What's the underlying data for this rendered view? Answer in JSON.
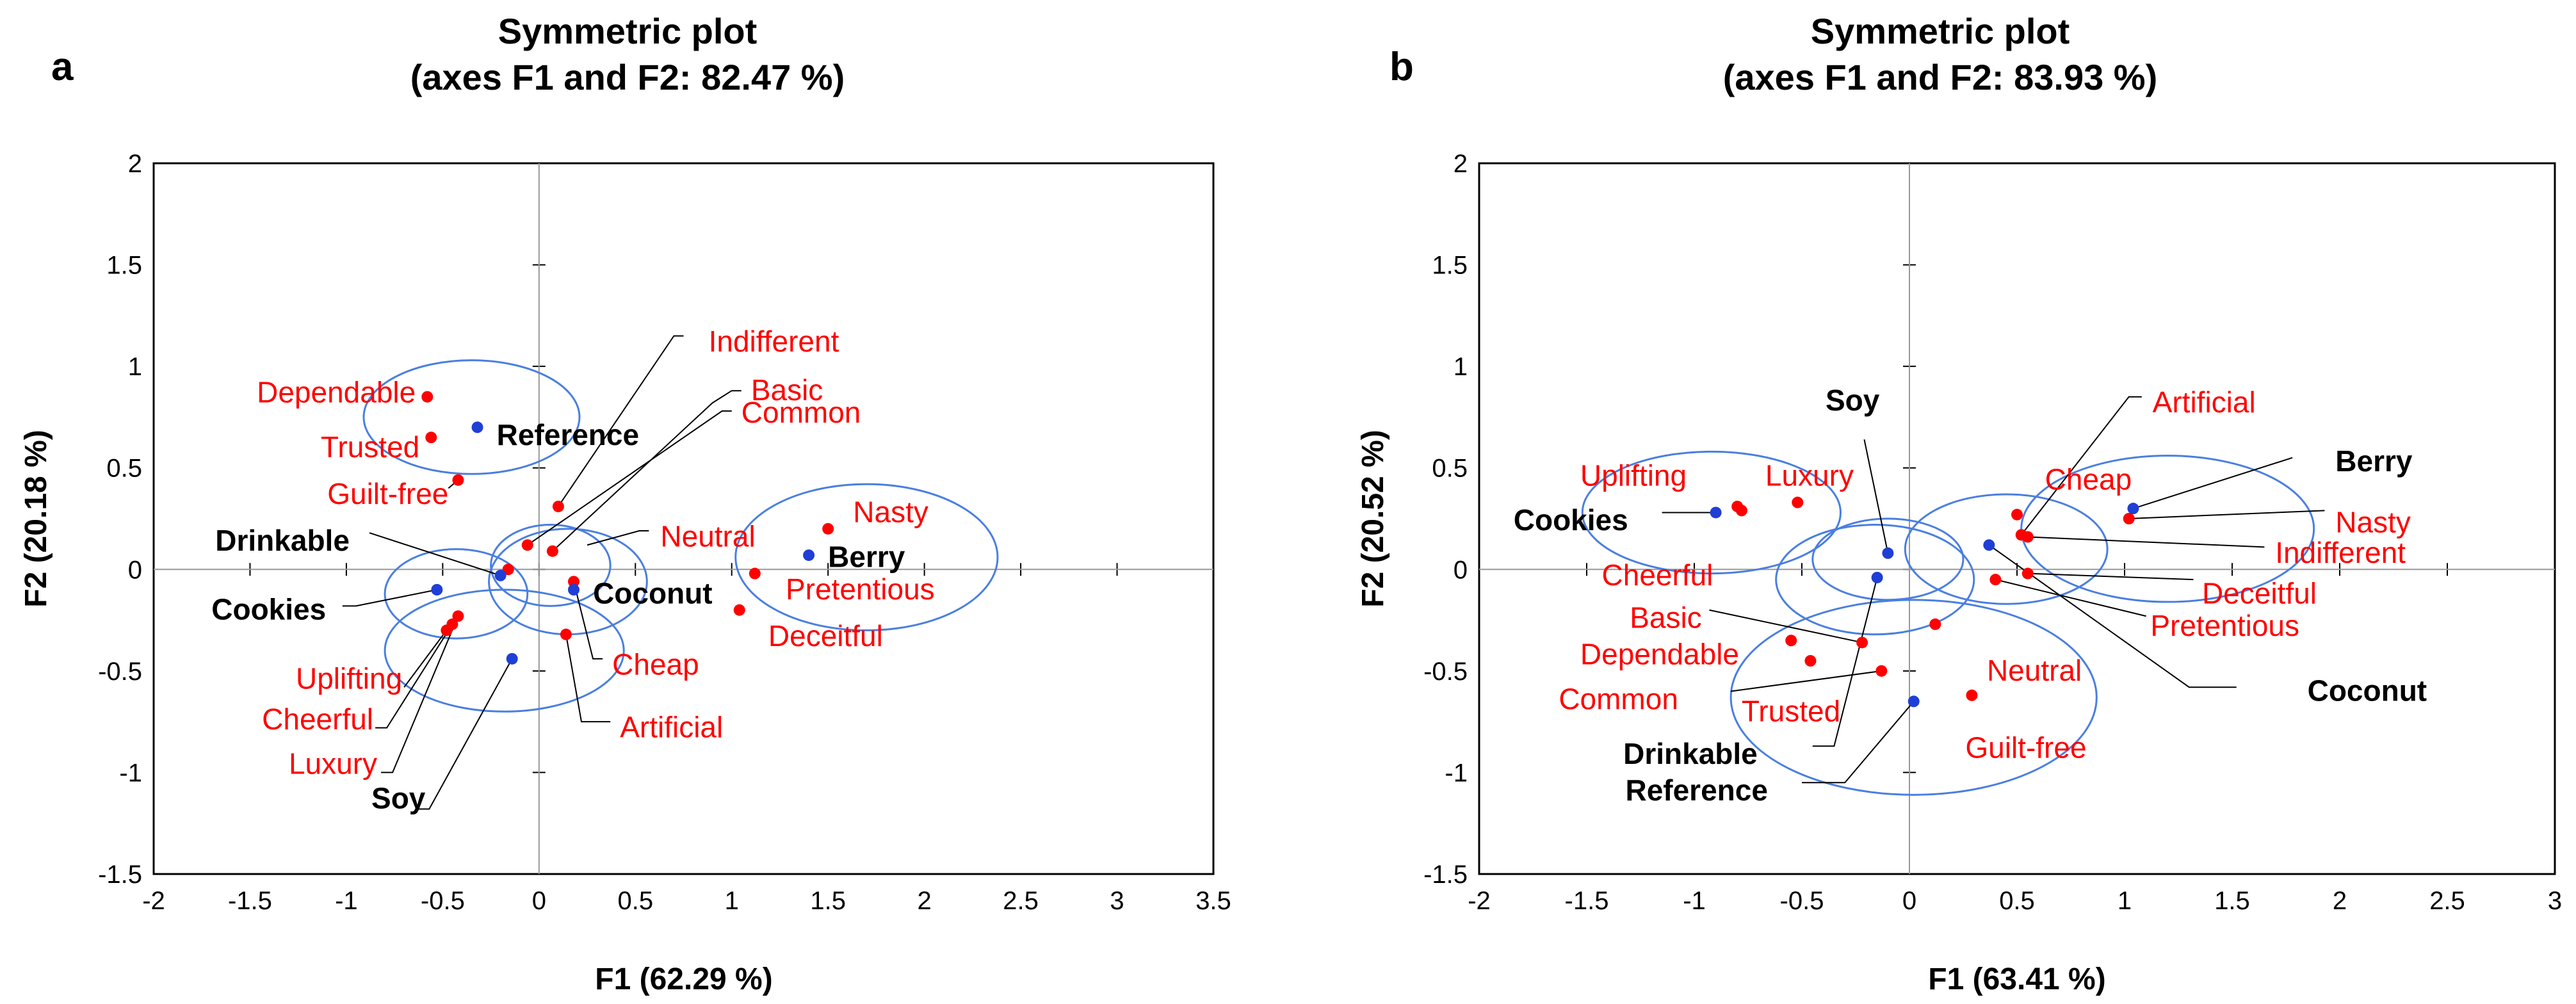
{
  "colors": {
    "attribute": "#ff0000",
    "sample": "#1f3fd6",
    "ellipse": "#4a7fe0",
    "frame": "#000000",
    "zero_line": "#999999"
  },
  "chart_data": [
    {
      "type": "scatter",
      "panel": "a",
      "title": "Symmetric plot",
      "subtitle": "(axes F1 and F2: 82.47 %)",
      "xlabel": "F1 (62.29 %)",
      "ylabel": "F2 (20.18 %)",
      "xlim": [
        -2,
        3.5
      ],
      "ylim": [
        -1.5,
        2
      ],
      "xticks": [
        "-2",
        "-1.5",
        "-1",
        "-0.5",
        "0",
        "0.5",
        "1",
        "1.5",
        "2",
        "2.5",
        "3",
        "3.5"
      ],
      "yticks": [
        "-1.5",
        "-1",
        "-0.5",
        "0",
        "0.5",
        "1",
        "1.5",
        "2"
      ],
      "attributes": [
        {
          "name": "Dependable",
          "x": -0.58,
          "y": 0.85
        },
        {
          "name": "Trusted",
          "x": -0.56,
          "y": 0.65
        },
        {
          "name": "Guilt-free",
          "x": -0.42,
          "y": 0.44
        },
        {
          "name": "Indifferent",
          "x": 0.1,
          "y": 0.31
        },
        {
          "name": "Basic",
          "x": -0.06,
          "y": 0.12
        },
        {
          "name": "Common",
          "x": 0.07,
          "y": 0.09
        },
        {
          "name": "Neutral",
          "x": -0.16,
          "y": 0.0
        },
        {
          "name": "Nasty",
          "x": 1.5,
          "y": 0.2
        },
        {
          "name": "Pretentious",
          "x": 1.12,
          "y": -0.02
        },
        {
          "name": "Deceitful",
          "x": 1.04,
          "y": -0.2
        },
        {
          "name": "Cheap",
          "x": 0.18,
          "y": -0.06
        },
        {
          "name": "Artificial",
          "x": 0.14,
          "y": -0.32
        },
        {
          "name": "Uplifting",
          "x": -0.48,
          "y": -0.3
        },
        {
          "name": "Cheerful",
          "x": -0.45,
          "y": -0.27
        },
        {
          "name": "Luxury",
          "x": -0.42,
          "y": -0.23
        }
      ],
      "samples": [
        {
          "name": "Reference",
          "x": -0.32,
          "y": 0.7
        },
        {
          "name": "Drinkable",
          "x": -0.2,
          "y": -0.03
        },
        {
          "name": "Cookies",
          "x": -0.53,
          "y": -0.1
        },
        {
          "name": "Coconut",
          "x": 0.18,
          "y": -0.1
        },
        {
          "name": "Berry",
          "x": 1.4,
          "y": 0.07
        },
        {
          "name": "Soy",
          "x": -0.14,
          "y": -0.44
        }
      ]
    },
    {
      "type": "scatter",
      "panel": "b",
      "title": "Symmetric plot",
      "subtitle": "(axes F1 and F2: 83.93 %)",
      "xlabel": "F1 (63.41 %)",
      "ylabel": "F2 (20.52 %)",
      "xlim": [
        -2,
        3
      ],
      "ylim": [
        -1.5,
        2
      ],
      "xticks": [
        "-2",
        "-1.5",
        "-1",
        "-0.5",
        "0",
        "0.5",
        "1",
        "1.5",
        "2",
        "2.5",
        "3"
      ],
      "yticks": [
        "-1.5",
        "-1",
        "-0.5",
        "0",
        "0.5",
        "1",
        "1.5",
        "2"
      ],
      "attributes": [
        {
          "name": "Uplifting",
          "x": -0.8,
          "y": 0.31
        },
        {
          "name": "Cheerful",
          "x": -0.78,
          "y": 0.29
        },
        {
          "name": "Luxury",
          "x": -0.52,
          "y": 0.33
        },
        {
          "name": "Artificial",
          "x": 0.5,
          "y": 0.27
        },
        {
          "name": "Cheap",
          "x": 0.52,
          "y": 0.17
        },
        {
          "name": "Nasty",
          "x": 1.02,
          "y": 0.25
        },
        {
          "name": "Indifferent",
          "x": 0.55,
          "y": 0.16
        },
        {
          "name": "Deceitful",
          "x": 0.55,
          "y": -0.02
        },
        {
          "name": "Pretentious",
          "x": 0.4,
          "y": -0.05
        },
        {
          "name": "Basic",
          "x": -0.22,
          "y": -0.36
        },
        {
          "name": "Dependable",
          "x": -0.55,
          "y": -0.35
        },
        {
          "name": "Common",
          "x": -0.46,
          "y": -0.45
        },
        {
          "name": "Trusted",
          "x": -0.13,
          "y": -0.5
        },
        {
          "name": "Neutral",
          "x": 0.12,
          "y": -0.27
        },
        {
          "name": "Guilt-free",
          "x": 0.29,
          "y": -0.62
        }
      ],
      "samples": [
        {
          "name": "Cookies",
          "x": -0.9,
          "y": 0.28
        },
        {
          "name": "Soy",
          "x": -0.1,
          "y": 0.08
        },
        {
          "name": "Berry",
          "x": 1.04,
          "y": 0.3
        },
        {
          "name": "Coconut",
          "x": 0.37,
          "y": 0.12
        },
        {
          "name": "Drinkable",
          "x": -0.15,
          "y": -0.04
        },
        {
          "name": "Reference",
          "x": 0.02,
          "y": -0.65
        }
      ]
    }
  ]
}
